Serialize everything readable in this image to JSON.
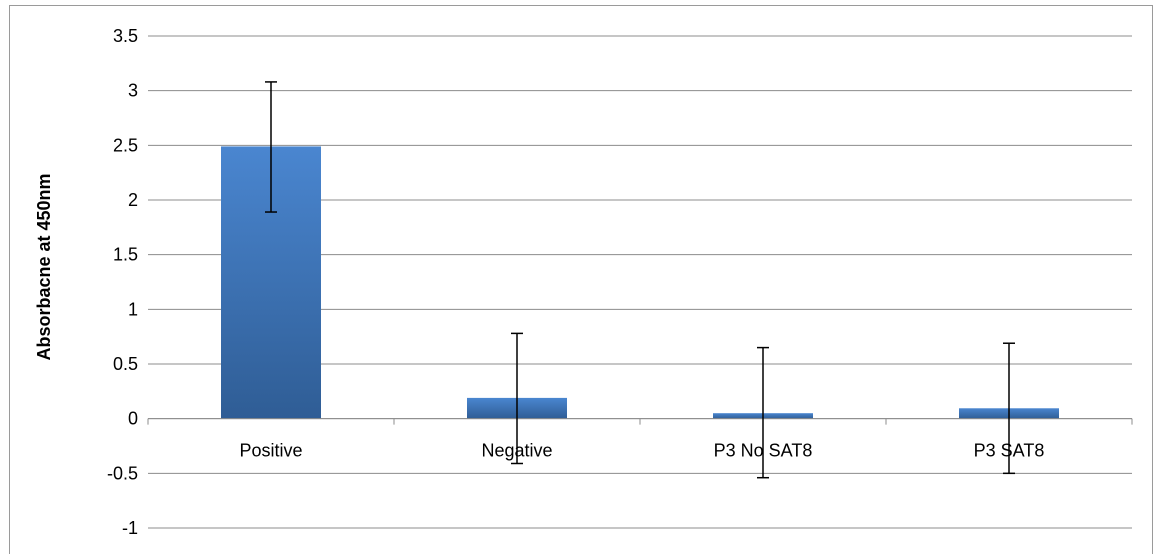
{
  "chart_data": {
    "type": "bar",
    "title": "",
    "xlabel": "",
    "ylabel": "Absorbacne at 450nm",
    "categories": [
      "Positive",
      "Negative",
      "P3 No SAT8",
      "P3 SAT8"
    ],
    "series": [
      {
        "values": [
          2.49,
          0.19,
          0.05,
          0.095
        ],
        "error_low": [
          1.89,
          -0.41,
          -0.54,
          -0.5
        ],
        "error_high": [
          3.08,
          0.78,
          0.65,
          0.69
        ],
        "color_top": "#4a86d0",
        "color_bottom": "#2f5d95"
      }
    ],
    "ylim": [
      -1,
      3.5
    ],
    "yticks": [
      "-1",
      "-0.5",
      "0",
      "0.5",
      "1",
      "1.5",
      "2",
      "2.5",
      "3",
      "3.5"
    ],
    "grid": true,
    "gridline_color": "#8c8c8c",
    "error_bar_color": "#000000"
  }
}
